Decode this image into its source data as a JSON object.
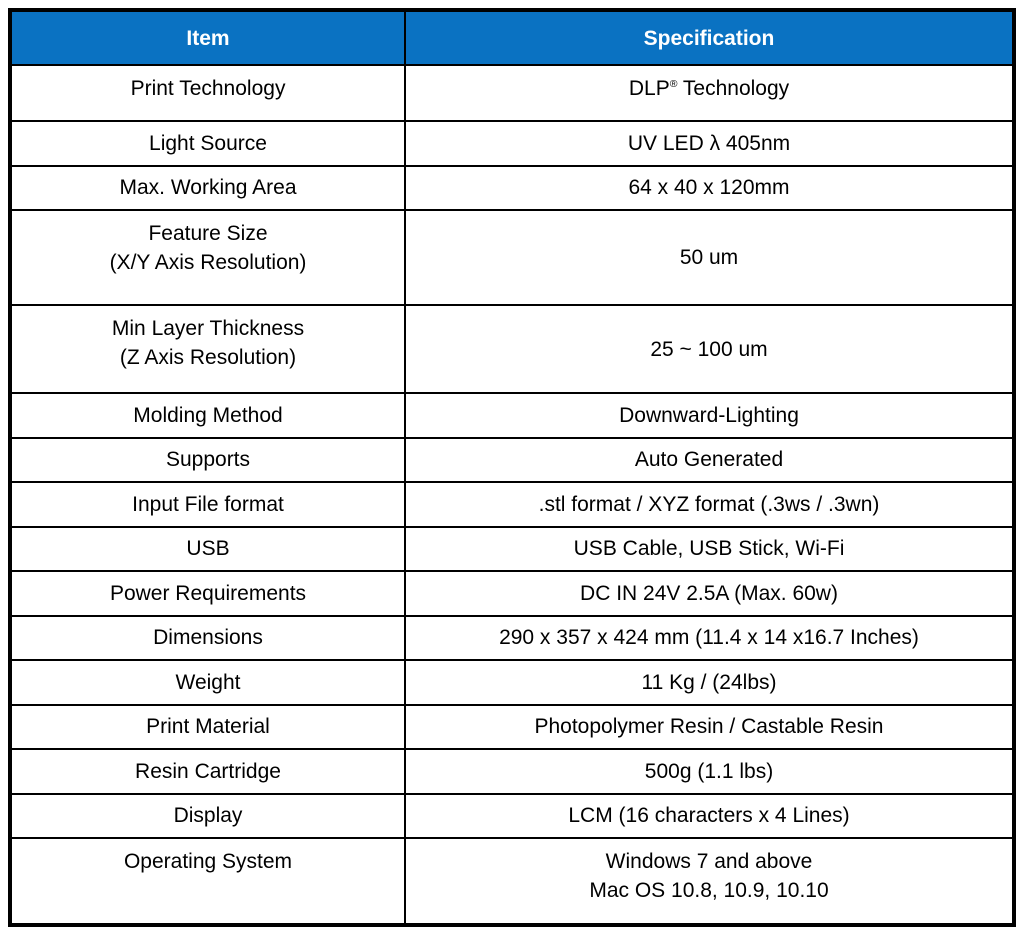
{
  "table": {
    "headers": [
      "Item",
      "Specification"
    ],
    "header_bg": "#0a72c2",
    "header_text_color": "#ffffff",
    "border_color": "#000000",
    "rows": [
      {
        "item": "Print Technology",
        "spec": "DLP® Technology"
      },
      {
        "item": "Light Source",
        "spec": "UV LED λ 405nm"
      },
      {
        "item": "Max. Working Area",
        "spec": "64 x 40 x 120mm"
      },
      {
        "item": "Feature Size\n(X/Y Axis Resolution)",
        "spec": "50 um"
      },
      {
        "item": "Min Layer Thickness\n(Z Axis Resolution)",
        "spec": "25 ~ 100 um"
      },
      {
        "item": "Molding Method",
        "spec": "Downward-Lighting"
      },
      {
        "item": "Supports",
        "spec": "Auto Generated"
      },
      {
        "item": "Input File format",
        "spec": ".stl format / XYZ format (.3ws / .3wn)"
      },
      {
        "item": "USB",
        "spec": "USB Cable, USB Stick, Wi-Fi"
      },
      {
        "item": "Power Requirements",
        "spec": "DC IN 24V 2.5A (Max. 60w)"
      },
      {
        "item": "Dimensions",
        "spec": "290 x 357 x 424 mm (11.4 x 14 x16.7 Inches)"
      },
      {
        "item": "Weight",
        "spec": "11 Kg / (24lbs)"
      },
      {
        "item": "Print Material",
        "spec": "Photopolymer Resin / Castable Resin"
      },
      {
        "item": "Resin Cartridge",
        "spec": "500g (1.1 lbs)"
      },
      {
        "item": "Display",
        "spec": "LCM (16 characters x 4 Lines)"
      },
      {
        "item": "Operating System",
        "spec": "Windows 7 and above\nMac OS 10.8, 10.9, 10.10"
      }
    ]
  }
}
